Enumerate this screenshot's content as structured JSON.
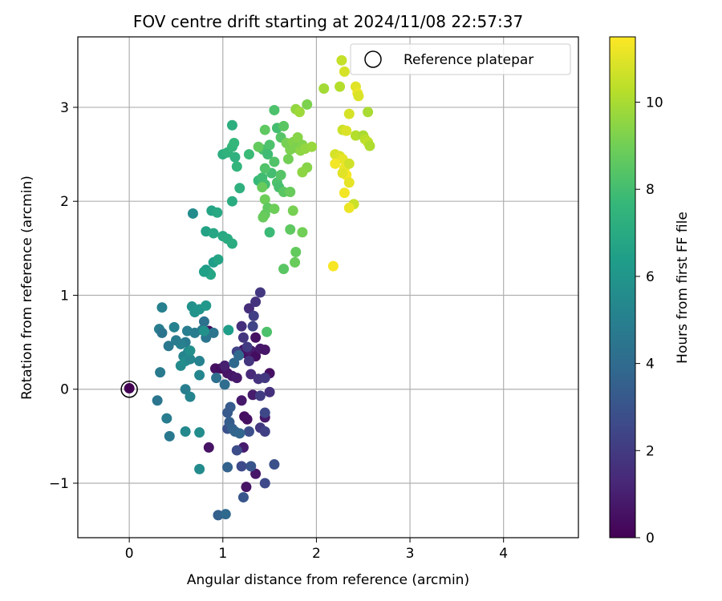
{
  "chart_data": {
    "type": "scatter",
    "title": "FOV centre drift starting at 2024/11/08 22:57:37",
    "xlabel": "Angular distance from reference (arcmin)",
    "ylabel": "Rotation from reference (arcmin)",
    "xlim": [
      -0.55,
      4.8
    ],
    "ylim": [
      -1.58,
      3.75
    ],
    "xticks": [
      0,
      1,
      2,
      3,
      4
    ],
    "xtick_labels": [
      "0",
      "1",
      "2",
      "3",
      "4"
    ],
    "yticks": [
      -1,
      0,
      1,
      2,
      3
    ],
    "ytick_labels": [
      "−1",
      "0",
      "1",
      "2",
      "3"
    ],
    "grid": true,
    "legend": {
      "placement": "top-right",
      "entries": [
        "Reference platepar"
      ]
    },
    "reference_point": {
      "x": 0,
      "y": 0,
      "label": "Reference platepar"
    },
    "colorbar": {
      "label": "Hours from first FF file",
      "min": 0,
      "max": 11.5,
      "ticks": [
        0,
        2,
        4,
        6,
        8,
        10
      ],
      "tick_labels": [
        "0",
        "2",
        "4",
        "6",
        "8",
        "10"
      ],
      "colormap": "viridis"
    },
    "colors": {
      "grid": "#b0b0b0",
      "axes": "#000000",
      "viridis": [
        "#440154",
        "#482878",
        "#3e4989",
        "#31688e",
        "#26828e",
        "#1f9e89",
        "#35b779",
        "#6ece58",
        "#b5de2b",
        "#fde725"
      ]
    },
    "points": [
      {
        "x": 0.0,
        "y": 0.01,
        "t": 0.0
      },
      {
        "x": 0.85,
        "y": 0.62,
        "t": 0.3
      },
      {
        "x": 0.92,
        "y": 0.22,
        "t": 0.5
      },
      {
        "x": 0.98,
        "y": 0.22,
        "t": 0.4
      },
      {
        "x": 1.05,
        "y": 0.17,
        "t": 0.6
      },
      {
        "x": 1.1,
        "y": 0.14,
        "t": 0.7
      },
      {
        "x": 1.15,
        "y": 0.12,
        "t": 0.8
      },
      {
        "x": 1.22,
        "y": 0.42,
        "t": 0.5
      },
      {
        "x": 1.25,
        "y": 0.38,
        "t": 0.6
      },
      {
        "x": 1.3,
        "y": 0.41,
        "t": 0.9
      },
      {
        "x": 1.35,
        "y": 0.35,
        "t": 0.4
      },
      {
        "x": 1.4,
        "y": 0.43,
        "t": 0.8
      },
      {
        "x": 1.45,
        "y": 0.42,
        "t": 0.7
      },
      {
        "x": 1.5,
        "y": 0.17,
        "t": 0.5
      },
      {
        "x": 1.2,
        "y": -0.12,
        "t": 0.8
      },
      {
        "x": 1.23,
        "y": -0.29,
        "t": 0.4
      },
      {
        "x": 1.26,
        "y": -0.32,
        "t": 0.5
      },
      {
        "x": 1.22,
        "y": -0.62,
        "t": 0.9
      },
      {
        "x": 1.25,
        "y": -1.04,
        "t": 0.6
      },
      {
        "x": 1.35,
        "y": -0.9,
        "t": 0.7
      },
      {
        "x": 0.85,
        "y": -0.62,
        "t": 0.6
      },
      {
        "x": 1.35,
        "y": 0.55,
        "t": 0.5
      },
      {
        "x": 1.02,
        "y": 0.25,
        "t": 1.0
      },
      {
        "x": 1.32,
        "y": -0.06,
        "t": 0.9
      },
      {
        "x": 1.45,
        "y": -0.3,
        "t": 0.8
      },
      {
        "x": 1.28,
        "y": 0.86,
        "t": 1.5
      },
      {
        "x": 1.35,
        "y": 0.93,
        "t": 1.7
      },
      {
        "x": 1.4,
        "y": 1.03,
        "t": 1.9
      },
      {
        "x": 1.33,
        "y": 0.78,
        "t": 2.2
      },
      {
        "x": 1.2,
        "y": 0.67,
        "t": 1.6
      },
      {
        "x": 1.22,
        "y": 0.55,
        "t": 1.8
      },
      {
        "x": 1.26,
        "y": 0.45,
        "t": 2.0
      },
      {
        "x": 1.28,
        "y": 0.3,
        "t": 1.8
      },
      {
        "x": 1.3,
        "y": 0.16,
        "t": 1.4
      },
      {
        "x": 1.38,
        "y": 0.11,
        "t": 1.7
      },
      {
        "x": 1.45,
        "y": 0.12,
        "t": 1.9
      },
      {
        "x": 1.4,
        "y": -0.07,
        "t": 2.1
      },
      {
        "x": 1.5,
        "y": -0.03,
        "t": 1.6
      },
      {
        "x": 1.15,
        "y": 0.4,
        "t": 2.3
      },
      {
        "x": 1.32,
        "y": 0.67,
        "t": 2.4
      },
      {
        "x": 1.4,
        "y": -0.41,
        "t": 1.9
      },
      {
        "x": 1.45,
        "y": -0.45,
        "t": 2.2
      },
      {
        "x": 1.45,
        "y": -1.0,
        "t": 2.6
      },
      {
        "x": 1.55,
        "y": -0.8,
        "t": 2.9
      },
      {
        "x": 1.45,
        "y": -0.25,
        "t": 2.5
      },
      {
        "x": 1.2,
        "y": -0.82,
        "t": 2.6
      },
      {
        "x": 1.28,
        "y": -0.45,
        "t": 2.8
      },
      {
        "x": 1.3,
        "y": -0.82,
        "t": 3.0
      },
      {
        "x": 1.15,
        "y": -0.65,
        "t": 2.7
      },
      {
        "x": 1.22,
        "y": -1.15,
        "t": 3.1
      },
      {
        "x": 1.05,
        "y": -0.42,
        "t": 2.9
      },
      {
        "x": 1.05,
        "y": -0.25,
        "t": 3.2
      },
      {
        "x": 1.07,
        "y": -0.35,
        "t": 3.4
      },
      {
        "x": 1.1,
        "y": -0.42,
        "t": 3.5
      },
      {
        "x": 1.08,
        "y": -0.19,
        "t": 3.3
      },
      {
        "x": 1.13,
        "y": -0.45,
        "t": 3.7
      },
      {
        "x": 1.18,
        "y": -0.47,
        "t": 3.8
      },
      {
        "x": 1.05,
        "y": -0.83,
        "t": 3.6
      },
      {
        "x": 1.12,
        "y": 0.28,
        "t": 3.9
      },
      {
        "x": 1.17,
        "y": 0.36,
        "t": 4.0
      },
      {
        "x": 1.02,
        "y": 0.05,
        "t": 4.1
      },
      {
        "x": 0.95,
        "y": -1.34,
        "t": 3.5
      },
      {
        "x": 1.03,
        "y": -1.33,
        "t": 3.9
      },
      {
        "x": 0.93,
        "y": 0.12,
        "t": 4.2
      },
      {
        "x": 0.9,
        "y": 0.6,
        "t": 4.4
      },
      {
        "x": 0.78,
        "y": 0.63,
        "t": 4.6
      },
      {
        "x": 0.82,
        "y": 0.55,
        "t": 4.5
      },
      {
        "x": 0.8,
        "y": 0.72,
        "t": 4.3
      },
      {
        "x": 0.7,
        "y": 0.6,
        "t": 4.8
      },
      {
        "x": 0.62,
        "y": 0.62,
        "t": 4.9
      },
      {
        "x": 0.6,
        "y": 0.5,
        "t": 4.7
      },
      {
        "x": 0.55,
        "y": 0.48,
        "t": 5.0
      },
      {
        "x": 0.5,
        "y": 0.52,
        "t": 4.8
      },
      {
        "x": 0.48,
        "y": 0.66,
        "t": 5.1
      },
      {
        "x": 0.42,
        "y": 0.46,
        "t": 4.6
      },
      {
        "x": 0.32,
        "y": 0.64,
        "t": 4.9
      },
      {
        "x": 0.35,
        "y": 0.6,
        "t": 4.4
      },
      {
        "x": 0.35,
        "y": 0.87,
        "t": 5.0
      },
      {
        "x": 0.33,
        "y": 0.18,
        "t": 4.7
      },
      {
        "x": 0.3,
        "y": -0.12,
        "t": 4.5
      },
      {
        "x": 0.4,
        "y": -0.31,
        "t": 4.8
      },
      {
        "x": 0.43,
        "y": -0.5,
        "t": 4.6
      },
      {
        "x": 0.6,
        "y": 0.0,
        "t": 4.9
      },
      {
        "x": 0.65,
        "y": -0.08,
        "t": 5.2
      },
      {
        "x": 0.75,
        "y": 0.15,
        "t": 5.3
      },
      {
        "x": 0.63,
        "y": 0.4,
        "t": 5.4
      },
      {
        "x": 0.58,
        "y": 0.35,
        "t": 5.2
      },
      {
        "x": 0.55,
        "y": 0.25,
        "t": 5.5
      },
      {
        "x": 0.6,
        "y": 0.3,
        "t": 5.6
      },
      {
        "x": 0.65,
        "y": 0.32,
        "t": 5.3
      },
      {
        "x": 0.75,
        "y": 0.3,
        "t": 5.1
      },
      {
        "x": 0.65,
        "y": 0.41,
        "t": 5.7
      },
      {
        "x": 0.6,
        "y": -0.45,
        "t": 5.4
      },
      {
        "x": 0.75,
        "y": -0.46,
        "t": 5.6
      },
      {
        "x": 0.75,
        "y": -0.85,
        "t": 5.5
      },
      {
        "x": 0.67,
        "y": 0.88,
        "t": 5.8
      },
      {
        "x": 0.7,
        "y": 0.82,
        "t": 5.9
      },
      {
        "x": 0.75,
        "y": 0.85,
        "t": 6.0
      },
      {
        "x": 0.82,
        "y": 0.89,
        "t": 6.1
      },
      {
        "x": 0.8,
        "y": 0.62,
        "t": 5.8
      },
      {
        "x": 0.68,
        "y": 1.87,
        "t": 5.5
      },
      {
        "x": 1.06,
        "y": 0.63,
        "t": 6.4
      },
      {
        "x": 1.47,
        "y": 0.61,
        "t": 8.2
      },
      {
        "x": 0.82,
        "y": 1.27,
        "t": 6.3
      },
      {
        "x": 0.85,
        "y": 1.24,
        "t": 6.6
      },
      {
        "x": 0.87,
        "y": 1.22,
        "t": 6.8
      },
      {
        "x": 0.9,
        "y": 1.35,
        "t": 6.4
      },
      {
        "x": 0.95,
        "y": 1.38,
        "t": 6.7
      },
      {
        "x": 0.8,
        "y": 1.25,
        "t": 6.5
      },
      {
        "x": 0.82,
        "y": 1.68,
        "t": 6.6
      },
      {
        "x": 0.9,
        "y": 1.66,
        "t": 6.8
      },
      {
        "x": 1.0,
        "y": 1.63,
        "t": 6.9
      },
      {
        "x": 1.05,
        "y": 1.6,
        "t": 7.0
      },
      {
        "x": 1.1,
        "y": 1.55,
        "t": 7.1
      },
      {
        "x": 0.88,
        "y": 1.9,
        "t": 6.7
      },
      {
        "x": 0.94,
        "y": 1.88,
        "t": 6.9
      },
      {
        "x": 1.1,
        "y": 2.0,
        "t": 7.1
      },
      {
        "x": 1.18,
        "y": 2.14,
        "t": 7.3
      },
      {
        "x": 1.0,
        "y": 2.5,
        "t": 7.2
      },
      {
        "x": 1.05,
        "y": 2.52,
        "t": 7.4
      },
      {
        "x": 1.1,
        "y": 2.58,
        "t": 7.5
      },
      {
        "x": 1.12,
        "y": 2.62,
        "t": 7.6
      },
      {
        "x": 1.13,
        "y": 2.47,
        "t": 7.3
      },
      {
        "x": 1.15,
        "y": 2.37,
        "t": 7.5
      },
      {
        "x": 1.28,
        "y": 2.5,
        "t": 7.8
      },
      {
        "x": 1.1,
        "y": 2.81,
        "t": 7.2
      },
      {
        "x": 1.38,
        "y": 2.22,
        "t": 7.7
      },
      {
        "x": 1.42,
        "y": 2.25,
        "t": 7.9
      },
      {
        "x": 1.45,
        "y": 2.18,
        "t": 8.0
      },
      {
        "x": 1.5,
        "y": 1.67,
        "t": 7.8
      },
      {
        "x": 1.43,
        "y": 2.55,
        "t": 8.1
      },
      {
        "x": 1.5,
        "y": 2.6,
        "t": 8.2
      },
      {
        "x": 1.48,
        "y": 2.5,
        "t": 7.9
      },
      {
        "x": 1.55,
        "y": 2.42,
        "t": 8.3
      },
      {
        "x": 1.52,
        "y": 2.3,
        "t": 8.0
      },
      {
        "x": 1.58,
        "y": 2.2,
        "t": 8.2
      },
      {
        "x": 1.6,
        "y": 2.15,
        "t": 8.1
      },
      {
        "x": 1.62,
        "y": 2.28,
        "t": 8.4
      },
      {
        "x": 1.65,
        "y": 2.1,
        "t": 8.5
      },
      {
        "x": 1.45,
        "y": 2.35,
        "t": 8.3
      },
      {
        "x": 1.58,
        "y": 2.78,
        "t": 8.0
      },
      {
        "x": 1.62,
        "y": 2.68,
        "t": 8.4
      },
      {
        "x": 1.65,
        "y": 2.8,
        "t": 8.5
      },
      {
        "x": 1.55,
        "y": 2.97,
        "t": 8.2
      },
      {
        "x": 1.45,
        "y": 2.76,
        "t": 8.6
      },
      {
        "x": 1.38,
        "y": 2.58,
        "t": 8.7
      },
      {
        "x": 1.42,
        "y": 2.15,
        "t": 8.8
      },
      {
        "x": 1.45,
        "y": 2.02,
        "t": 8.9
      },
      {
        "x": 1.48,
        "y": 1.93,
        "t": 8.6
      },
      {
        "x": 1.45,
        "y": 1.86,
        "t": 8.7
      },
      {
        "x": 1.43,
        "y": 1.83,
        "t": 8.8
      },
      {
        "x": 1.55,
        "y": 1.92,
        "t": 8.9
      },
      {
        "x": 1.65,
        "y": 1.28,
        "t": 8.5
      },
      {
        "x": 1.72,
        "y": 1.7,
        "t": 8.6
      },
      {
        "x": 1.78,
        "y": 1.46,
        "t": 8.7
      },
      {
        "x": 1.77,
        "y": 1.35,
        "t": 8.8
      },
      {
        "x": 1.85,
        "y": 1.67,
        "t": 9.0
      },
      {
        "x": 1.75,
        "y": 1.9,
        "t": 9.1
      },
      {
        "x": 1.72,
        "y": 2.1,
        "t": 8.8
      },
      {
        "x": 1.7,
        "y": 2.45,
        "t": 9.0
      },
      {
        "x": 1.72,
        "y": 2.55,
        "t": 9.2
      },
      {
        "x": 1.68,
        "y": 2.62,
        "t": 9.1
      },
      {
        "x": 1.75,
        "y": 2.63,
        "t": 9.3
      },
      {
        "x": 1.8,
        "y": 2.68,
        "t": 9.4
      },
      {
        "x": 1.78,
        "y": 2.57,
        "t": 9.2
      },
      {
        "x": 1.83,
        "y": 2.54,
        "t": 9.5
      },
      {
        "x": 1.85,
        "y": 2.6,
        "t": 9.3
      },
      {
        "x": 1.88,
        "y": 2.56,
        "t": 9.6
      },
      {
        "x": 1.9,
        "y": 2.36,
        "t": 9.4
      },
      {
        "x": 1.85,
        "y": 2.31,
        "t": 9.5
      },
      {
        "x": 1.95,
        "y": 2.58,
        "t": 9.7
      },
      {
        "x": 1.78,
        "y": 2.98,
        "t": 9.6
      },
      {
        "x": 1.82,
        "y": 2.95,
        "t": 9.8
      },
      {
        "x": 1.9,
        "y": 3.03,
        "t": 9.2
      },
      {
        "x": 2.08,
        "y": 3.2,
        "t": 9.9
      },
      {
        "x": 2.25,
        "y": 3.22,
        "t": 10.2
      },
      {
        "x": 2.27,
        "y": 3.5,
        "t": 10.5
      },
      {
        "x": 2.35,
        "y": 2.93,
        "t": 10.8
      },
      {
        "x": 2.28,
        "y": 2.76,
        "t": 10.6
      },
      {
        "x": 2.32,
        "y": 2.75,
        "t": 10.9
      },
      {
        "x": 2.42,
        "y": 3.22,
        "t": 11.0
      },
      {
        "x": 2.44,
        "y": 3.15,
        "t": 11.2
      },
      {
        "x": 2.45,
        "y": 3.12,
        "t": 10.9
      },
      {
        "x": 2.3,
        "y": 3.38,
        "t": 10.8
      },
      {
        "x": 2.2,
        "y": 2.5,
        "t": 10.8
      },
      {
        "x": 2.25,
        "y": 2.48,
        "t": 10.9
      },
      {
        "x": 2.28,
        "y": 2.45,
        "t": 11.1
      },
      {
        "x": 2.2,
        "y": 2.4,
        "t": 11.3
      },
      {
        "x": 2.3,
        "y": 2.35,
        "t": 11.2
      },
      {
        "x": 2.32,
        "y": 2.28,
        "t": 11.4
      },
      {
        "x": 2.28,
        "y": 2.3,
        "t": 11.0
      },
      {
        "x": 2.35,
        "y": 2.4,
        "t": 10.7
      },
      {
        "x": 2.35,
        "y": 2.2,
        "t": 11.1
      },
      {
        "x": 2.3,
        "y": 2.09,
        "t": 11.3
      },
      {
        "x": 2.4,
        "y": 1.97,
        "t": 10.6
      },
      {
        "x": 2.35,
        "y": 1.93,
        "t": 11.2
      },
      {
        "x": 2.18,
        "y": 1.31,
        "t": 11.4
      },
      {
        "x": 2.42,
        "y": 2.7,
        "t": 10.2
      },
      {
        "x": 2.5,
        "y": 2.7,
        "t": 10.0
      },
      {
        "x": 2.52,
        "y": 2.66,
        "t": 10.3
      },
      {
        "x": 2.55,
        "y": 2.63,
        "t": 10.4
      },
      {
        "x": 2.57,
        "y": 2.59,
        "t": 10.1
      },
      {
        "x": 2.55,
        "y": 2.95,
        "t": 10.0
      }
    ]
  }
}
